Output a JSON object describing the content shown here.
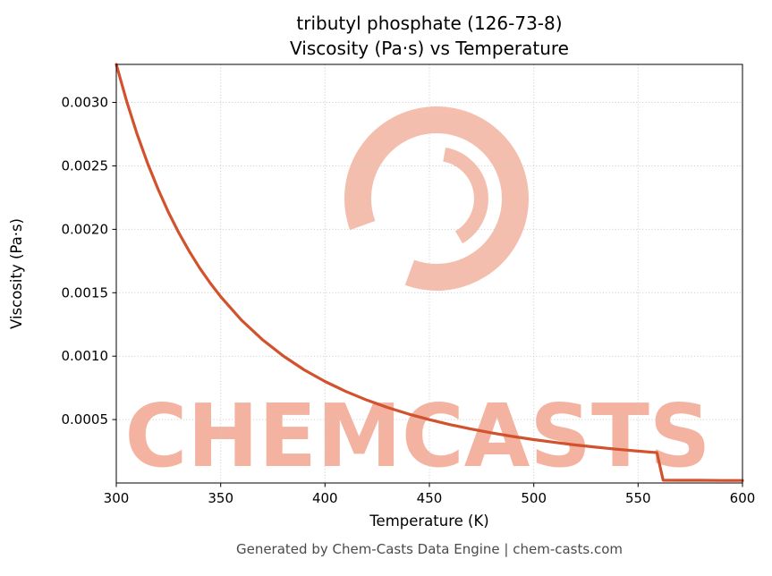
{
  "page": {
    "title_line1": "tributyl phosphate (126-73-8)",
    "title_line2": "Viscosity (Pa·s) vs Temperature",
    "footer": "Generated by Chem-Casts Data Engine | chem-casts.com"
  },
  "watermark": {
    "text": "CHEMCASTS",
    "color": "#f3b3a0"
  },
  "chart_data": {
    "type": "line",
    "title": "tributyl phosphate (126-73-8) — Viscosity (Pa·s) vs Temperature",
    "xlabel": "Temperature (K)",
    "ylabel": "Viscosity (Pa·s)",
    "xlim": [
      300,
      600
    ],
    "ylim": [
      0,
      0.0033
    ],
    "xticks": [
      300,
      350,
      400,
      450,
      500,
      550,
      600
    ],
    "xtick_labels": [
      "300",
      "350",
      "400",
      "450",
      "500",
      "550",
      "600"
    ],
    "yticks": [
      0.0005,
      0.001,
      0.0015,
      0.002,
      0.0025,
      0.003
    ],
    "ytick_labels": [
      "0.0005",
      "0.0010",
      "0.0015",
      "0.0020",
      "0.0025",
      "0.0030"
    ],
    "grid": true,
    "grid_color": "#c9c9c9",
    "line_color": "#d2522e",
    "series": [
      {
        "name": "viscosity",
        "x": [
          300,
          305,
          310,
          315,
          320,
          325,
          330,
          335,
          340,
          345,
          350,
          360,
          370,
          380,
          390,
          400,
          410,
          420,
          430,
          440,
          450,
          460,
          470,
          480,
          490,
          500,
          510,
          520,
          530,
          540,
          550,
          557,
          559,
          562,
          570,
          580,
          590,
          600
        ],
        "y": [
          0.0033,
          0.003007,
          0.002749,
          0.00252,
          0.002316,
          0.002134,
          0.001971,
          0.001825,
          0.001694,
          0.001576,
          0.001469,
          0.001283,
          0.00113,
          0.001001,
          0.000892,
          0.0008,
          0.000721,
          0.000654,
          0.000595,
          0.000544,
          0.000499,
          0.00046,
          0.000425,
          0.000394,
          0.000367,
          0.000342,
          0.00032,
          0.0003,
          0.000282,
          0.000266,
          0.000251,
          0.000242,
          0.00024,
          2.2e-05,
          2.1e-05,
          2.1e-05,
          2e-05,
          2e-05
        ]
      }
    ]
  }
}
